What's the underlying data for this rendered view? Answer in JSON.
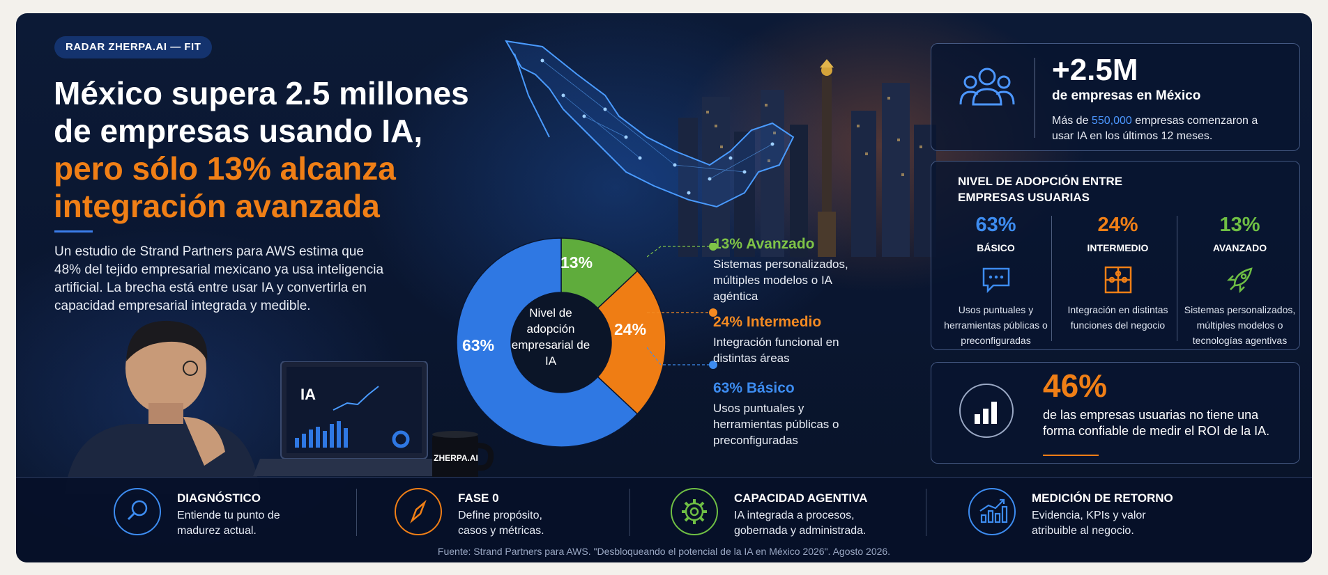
{
  "badge": "RADAR ZHERPA.AI — FIT",
  "headline": {
    "line1": "México supera 2.5 millones",
    "line2": "de empresas usando IA,",
    "line3": "pero sólo 13% alcanza",
    "line4": "integración avanzada"
  },
  "intro": "Un estudio de Strand Partners para AWS estima que 48% del tejido empresarial mexicano ya usa inteligencia artificial. La brecha está entre usar IA y convertirla en capacidad empresarial integrada y medible.",
  "illustration": {
    "laptop_text": "IA",
    "mug_text": "ZHERPA.AI"
  },
  "donut": {
    "center_text": "Nivel de adopción empresarial de IA",
    "labels": [
      "13%",
      "24%",
      "63%"
    ],
    "colors": {
      "avanzado": "#5fac3c",
      "intermedio": "#ef7d14",
      "basico": "#2f78e3"
    }
  },
  "chart_data": {
    "type": "pie",
    "title": "Nivel de adopción empresarial de IA",
    "categories": [
      "Avanzado",
      "Intermedio",
      "Básico"
    ],
    "values": [
      13,
      24,
      63
    ]
  },
  "legend": [
    {
      "pct": "13%",
      "name": "Avanzado",
      "desc": "Sistemas personalizados, múltiples modelos o IA agéntica",
      "color": "#7fc447"
    },
    {
      "pct": "24%",
      "name": "Intermedio",
      "desc": "Integración funcional en distintas áreas",
      "color": "#f48a22"
    },
    {
      "pct": "63%",
      "name": "Básico",
      "desc": "Usos puntuales y herramientas públicas o preconfiguradas",
      "color": "#3d8cf0"
    }
  ],
  "panel1": {
    "big": "+2.5M",
    "sub": "de empresas en México",
    "desc_pre": "Más de ",
    "desc_hl": "550,000",
    "desc_post": " empresas comenzaron a usar IA en los últimos 12 meses.",
    "icon": "users-icon"
  },
  "panel2": {
    "title": "NIVEL DE ADOPCIÓN ENTRE EMPRESAS USUARIAS",
    "cols": [
      {
        "pct": "63%",
        "level": "BÁSICO",
        "desc": "Usos puntuales y herramientas públicas o preconfiguradas",
        "color": "#3d8cf0",
        "icon": "chat-icon"
      },
      {
        "pct": "24%",
        "level": "INTERMEDIO",
        "desc": "Integración en distintas funciones del negocio",
        "color": "#f07f16",
        "icon": "puzzle-icon"
      },
      {
        "pct": "13%",
        "level": "AVANZADO",
        "desc": "Sistemas personalizados, múltiples modelos o tecnologías agentivas",
        "color": "#6fbf44",
        "icon": "rocket-icon"
      }
    ]
  },
  "panel3": {
    "big": "46%",
    "desc": "de las empresas usuarias no tiene una forma confiable de medir el ROI de la IA.",
    "icon": "bar-chart-icon"
  },
  "steps": [
    {
      "title": "DIAGNÓSTICO",
      "desc": "Entiende tu punto de madurez actual.",
      "icon": "magnifier-icon",
      "color": "#3d8cf0"
    },
    {
      "title": "FASE 0",
      "desc": "Define propósito, casos y métricas.",
      "icon": "compass-icon",
      "color": "#f07f16"
    },
    {
      "title": "CAPACIDAD AGENTIVA",
      "desc": "IA integrada a procesos, gobernada y administrada.",
      "icon": "gear-icon",
      "color": "#6fbf44"
    },
    {
      "title": "MEDICIÓN DE RETORNO",
      "desc": "Evidencia, KPIs y valor atribuible al negocio.",
      "icon": "growth-chart-icon",
      "color": "#3d8cf0"
    }
  ],
  "source": "Fuente: Strand Partners para AWS. \"Desbloqueando el potencial de la IA en México 2026\". Agosto 2026."
}
